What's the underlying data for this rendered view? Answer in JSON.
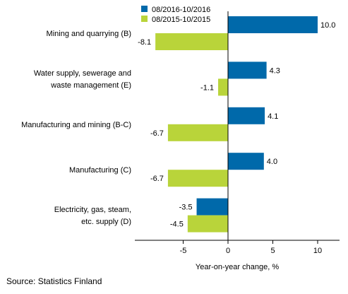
{
  "chart_data": {
    "type": "bar",
    "orientation": "horizontal",
    "categories": [
      [
        "Mining and quarrying (B)"
      ],
      [
        "Water supply, sewerage and",
        "waste management (E)"
      ],
      [
        "Manufacturing and mining (B-C)"
      ],
      [
        "Manufacturing (C)"
      ],
      [
        "Electricity, gas, steam,",
        "etc. supply (D)"
      ]
    ],
    "series": [
      {
        "name": "08/2016-10/2016",
        "color": "#0069aa",
        "values": [
          10.0,
          4.3,
          4.1,
          4.0,
          -3.5
        ]
      },
      {
        "name": "08/2015-10/2015",
        "color": "#b9d43a",
        "values": [
          -8.1,
          -1.1,
          -6.7,
          -6.7,
          -4.5
        ]
      }
    ],
    "xlabel": "Year-on-year change, %",
    "xticks": [
      -5,
      0,
      5,
      10
    ],
    "xlim": [
      -10.5,
      12.5
    ],
    "legend_position": "top",
    "grid": false
  },
  "source": "Source: Statistics Finland"
}
